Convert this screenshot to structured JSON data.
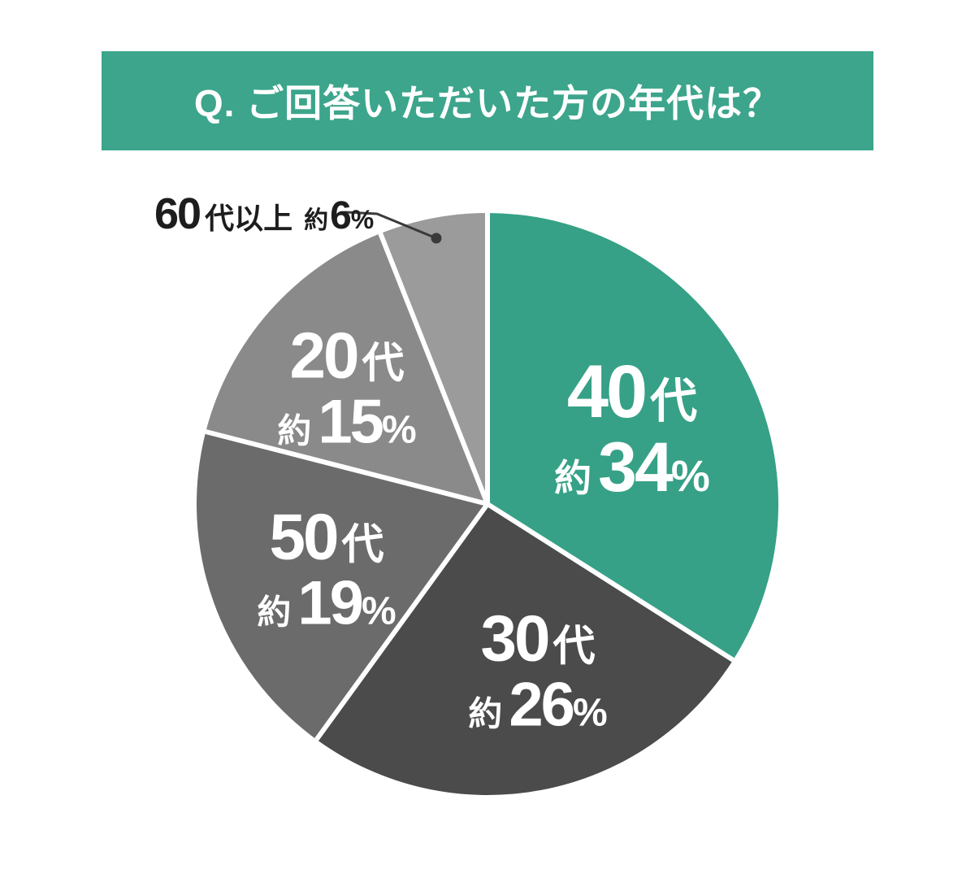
{
  "header": {
    "title": "Q. ご回答いただいた方の年代は？",
    "bg_color": "#3CA58B",
    "text_color": "#FFFFFF"
  },
  "colors": {
    "page_bg": "#FFFFFF",
    "slice_divider": "#FFFFFF",
    "callout_line": "#3A3A3A"
  },
  "chart_data": {
    "type": "pie",
    "title": "Q. ご回答いただいた方の年代は？",
    "unit": "%",
    "start_angle": "12-oclock",
    "direction": "clockwise",
    "legend": "none",
    "slices": [
      {
        "name": "40s",
        "num": "40",
        "suffix": "代",
        "approx": "約",
        "pct_num": "34",
        "pct_sign": "%",
        "value": 34,
        "color": "#36A186",
        "label_color": "#FFFFFF"
      },
      {
        "name": "30s",
        "num": "30",
        "suffix": "代",
        "approx": "約",
        "pct_num": "26",
        "pct_sign": "%",
        "value": 26,
        "color": "#4B4B4B",
        "label_color": "#FFFFFF"
      },
      {
        "name": "50s",
        "num": "50",
        "suffix": "代",
        "approx": "約",
        "pct_num": "19",
        "pct_sign": "%",
        "value": 19,
        "color": "#6B6B6B",
        "label_color": "#FFFFFF"
      },
      {
        "name": "20s",
        "num": "20",
        "suffix": "代",
        "approx": "約",
        "pct_num": "15",
        "pct_sign": "%",
        "value": 15,
        "color": "#8A8A8A",
        "label_color": "#FFFFFF"
      },
      {
        "name": "60s-plus",
        "num": "60",
        "suffix": "代以上",
        "approx": "約",
        "pct_num": "6",
        "pct_sign": "%",
        "value": 6,
        "color": "#9B9B9B",
        "label_color": "#1D1D1D",
        "callout": true
      }
    ]
  }
}
